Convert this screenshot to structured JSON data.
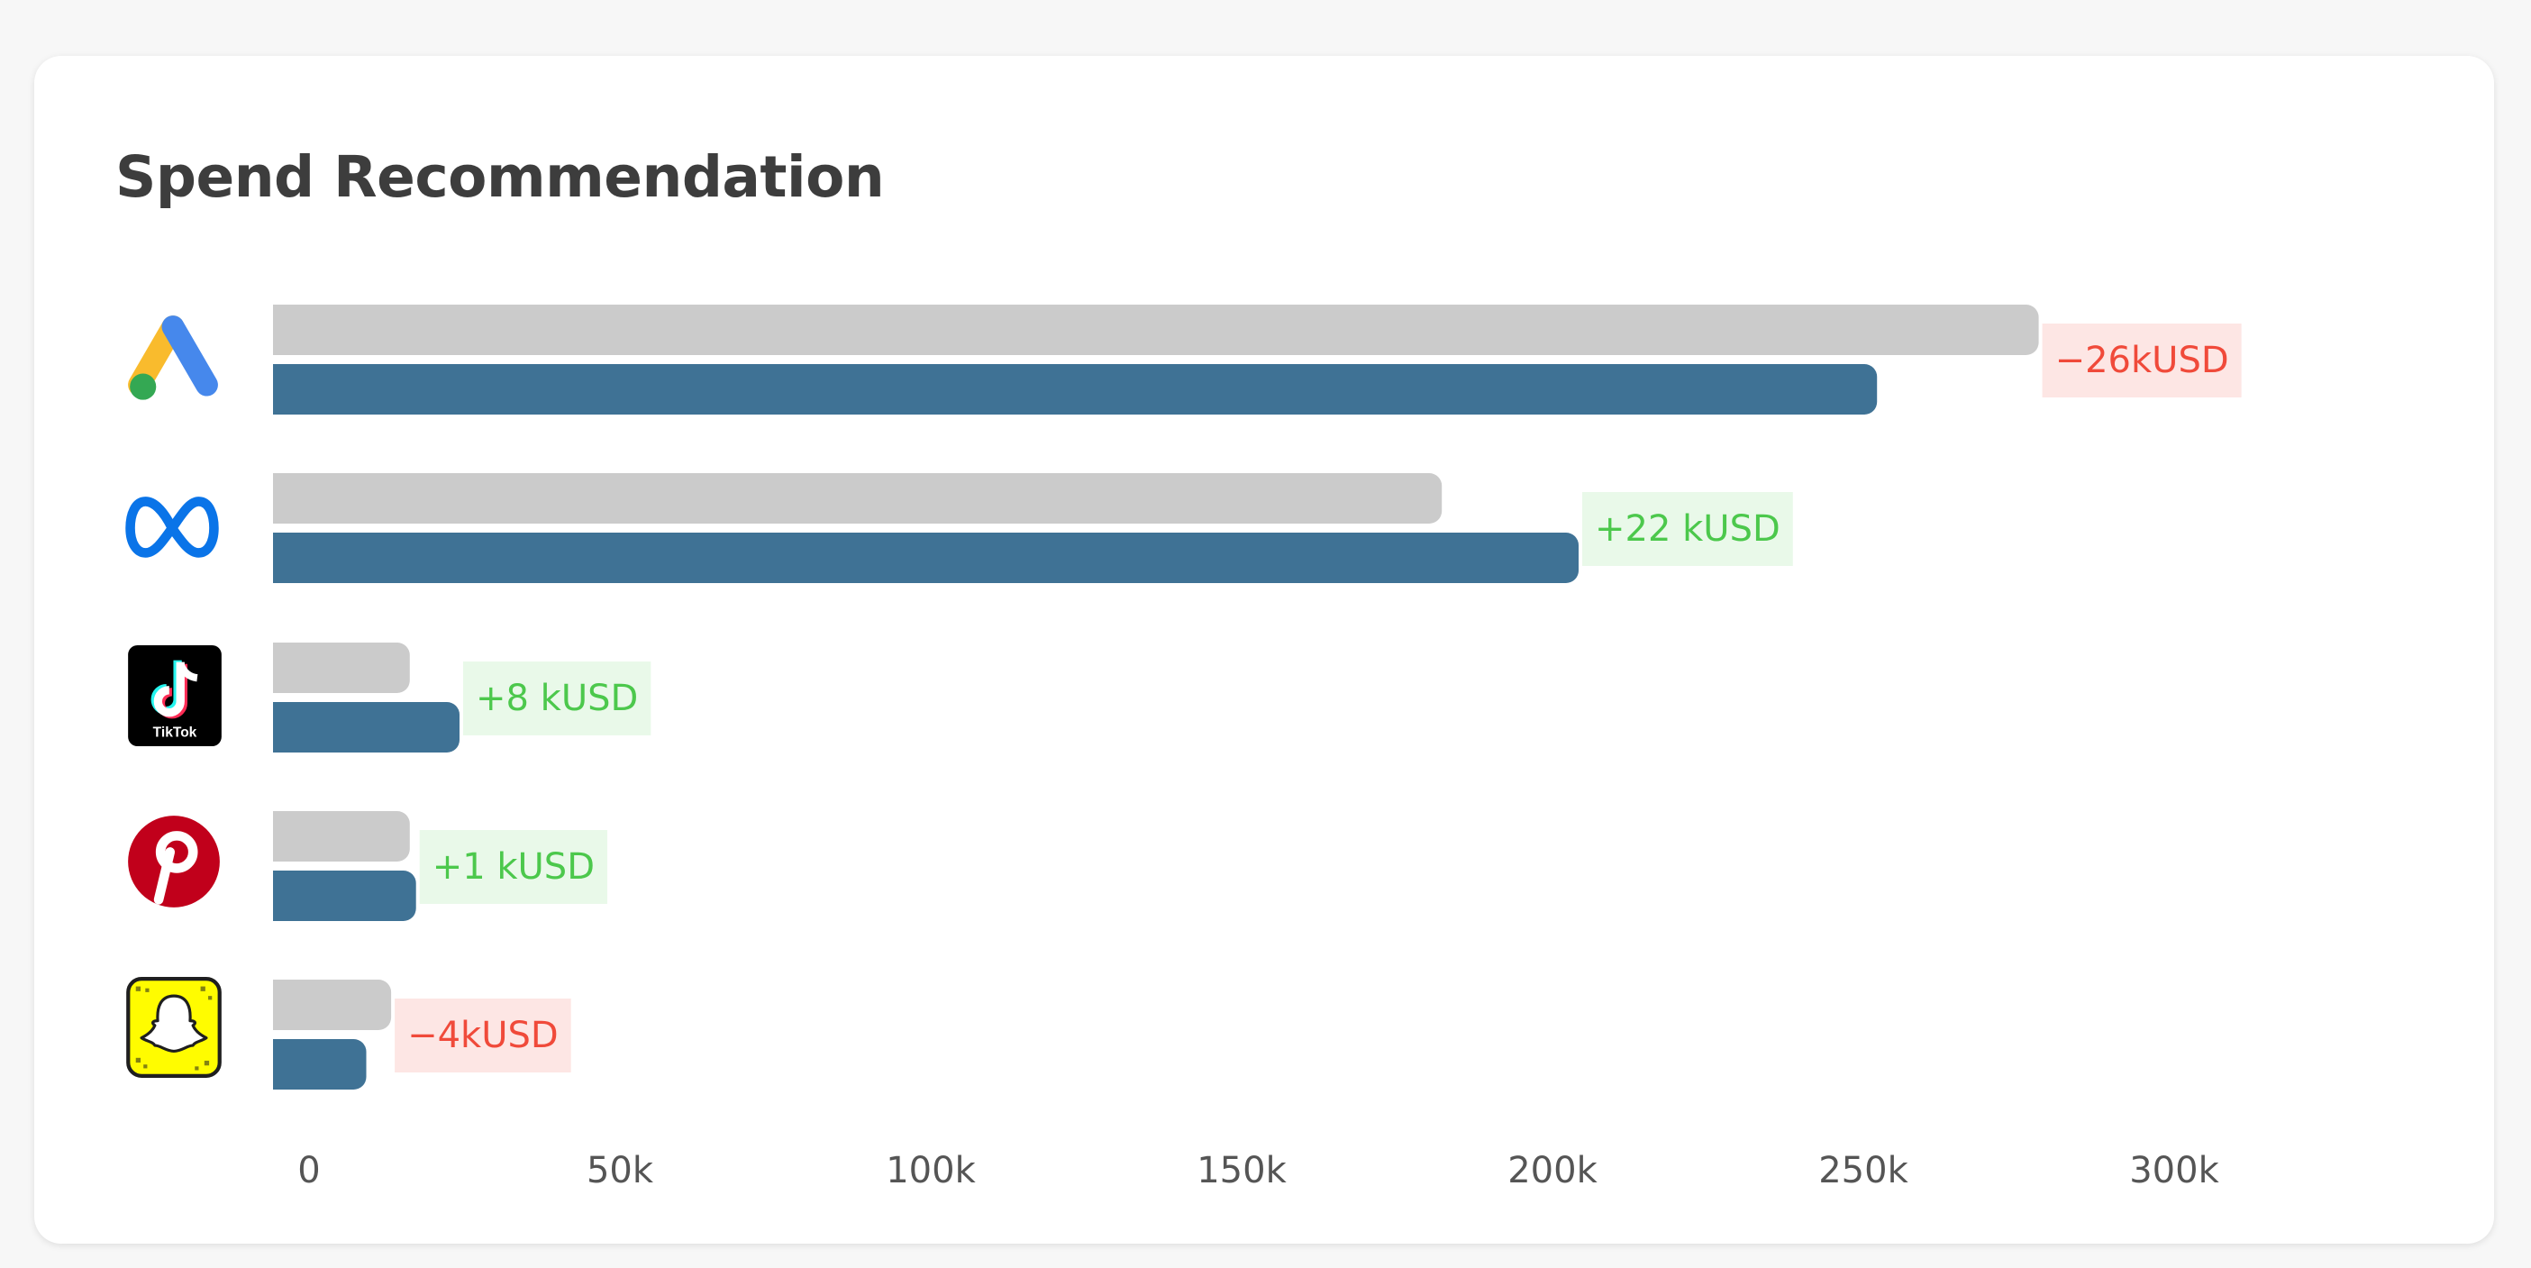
{
  "page": {
    "title": "Spend Recommendation"
  },
  "chart_data": {
    "type": "bar",
    "orientation": "horizontal",
    "categories": [
      "Google Ads",
      "Meta",
      "TikTok",
      "Pinterest",
      "Snapchat"
    ],
    "series": [
      {
        "values": [
          284000,
          188000,
          22000,
          22000,
          19000
        ]
      },
      {
        "values": [
          258000,
          210000,
          30000,
          23000,
          15000
        ]
      }
    ],
    "change_labels": [
      "−26kUSD",
      "+22 kUSD",
      "+8 kUSD",
      "+1 kUSD",
      "−4kUSD"
    ],
    "change_direction": [
      "negative",
      "positive",
      "positive",
      "positive",
      "negative"
    ],
    "xticks": [
      "0",
      "50k",
      "100k",
      "150k",
      "200k",
      "250k",
      "300k"
    ],
    "xtick_values": [
      0,
      50000,
      100000,
      150000,
      200000,
      250000,
      300000
    ],
    "xlim": [
      0,
      300000
    ],
    "grid": false,
    "legend": "none",
    "colors": {
      "current": "#cbcbcb",
      "recommended": "#3f7295",
      "positive_text": "#4cc84c",
      "positive_bg": "#e9f9e9",
      "negative_text": "#f04a3a",
      "negative_bg": "#fde6e4",
      "tick_text": "#555555"
    },
    "icons": [
      "google-ads-icon",
      "meta-icon",
      "tiktok-icon",
      "pinterest-icon",
      "snapchat-icon"
    ]
  },
  "icons": {
    "tiktok_text": "TikTok"
  }
}
